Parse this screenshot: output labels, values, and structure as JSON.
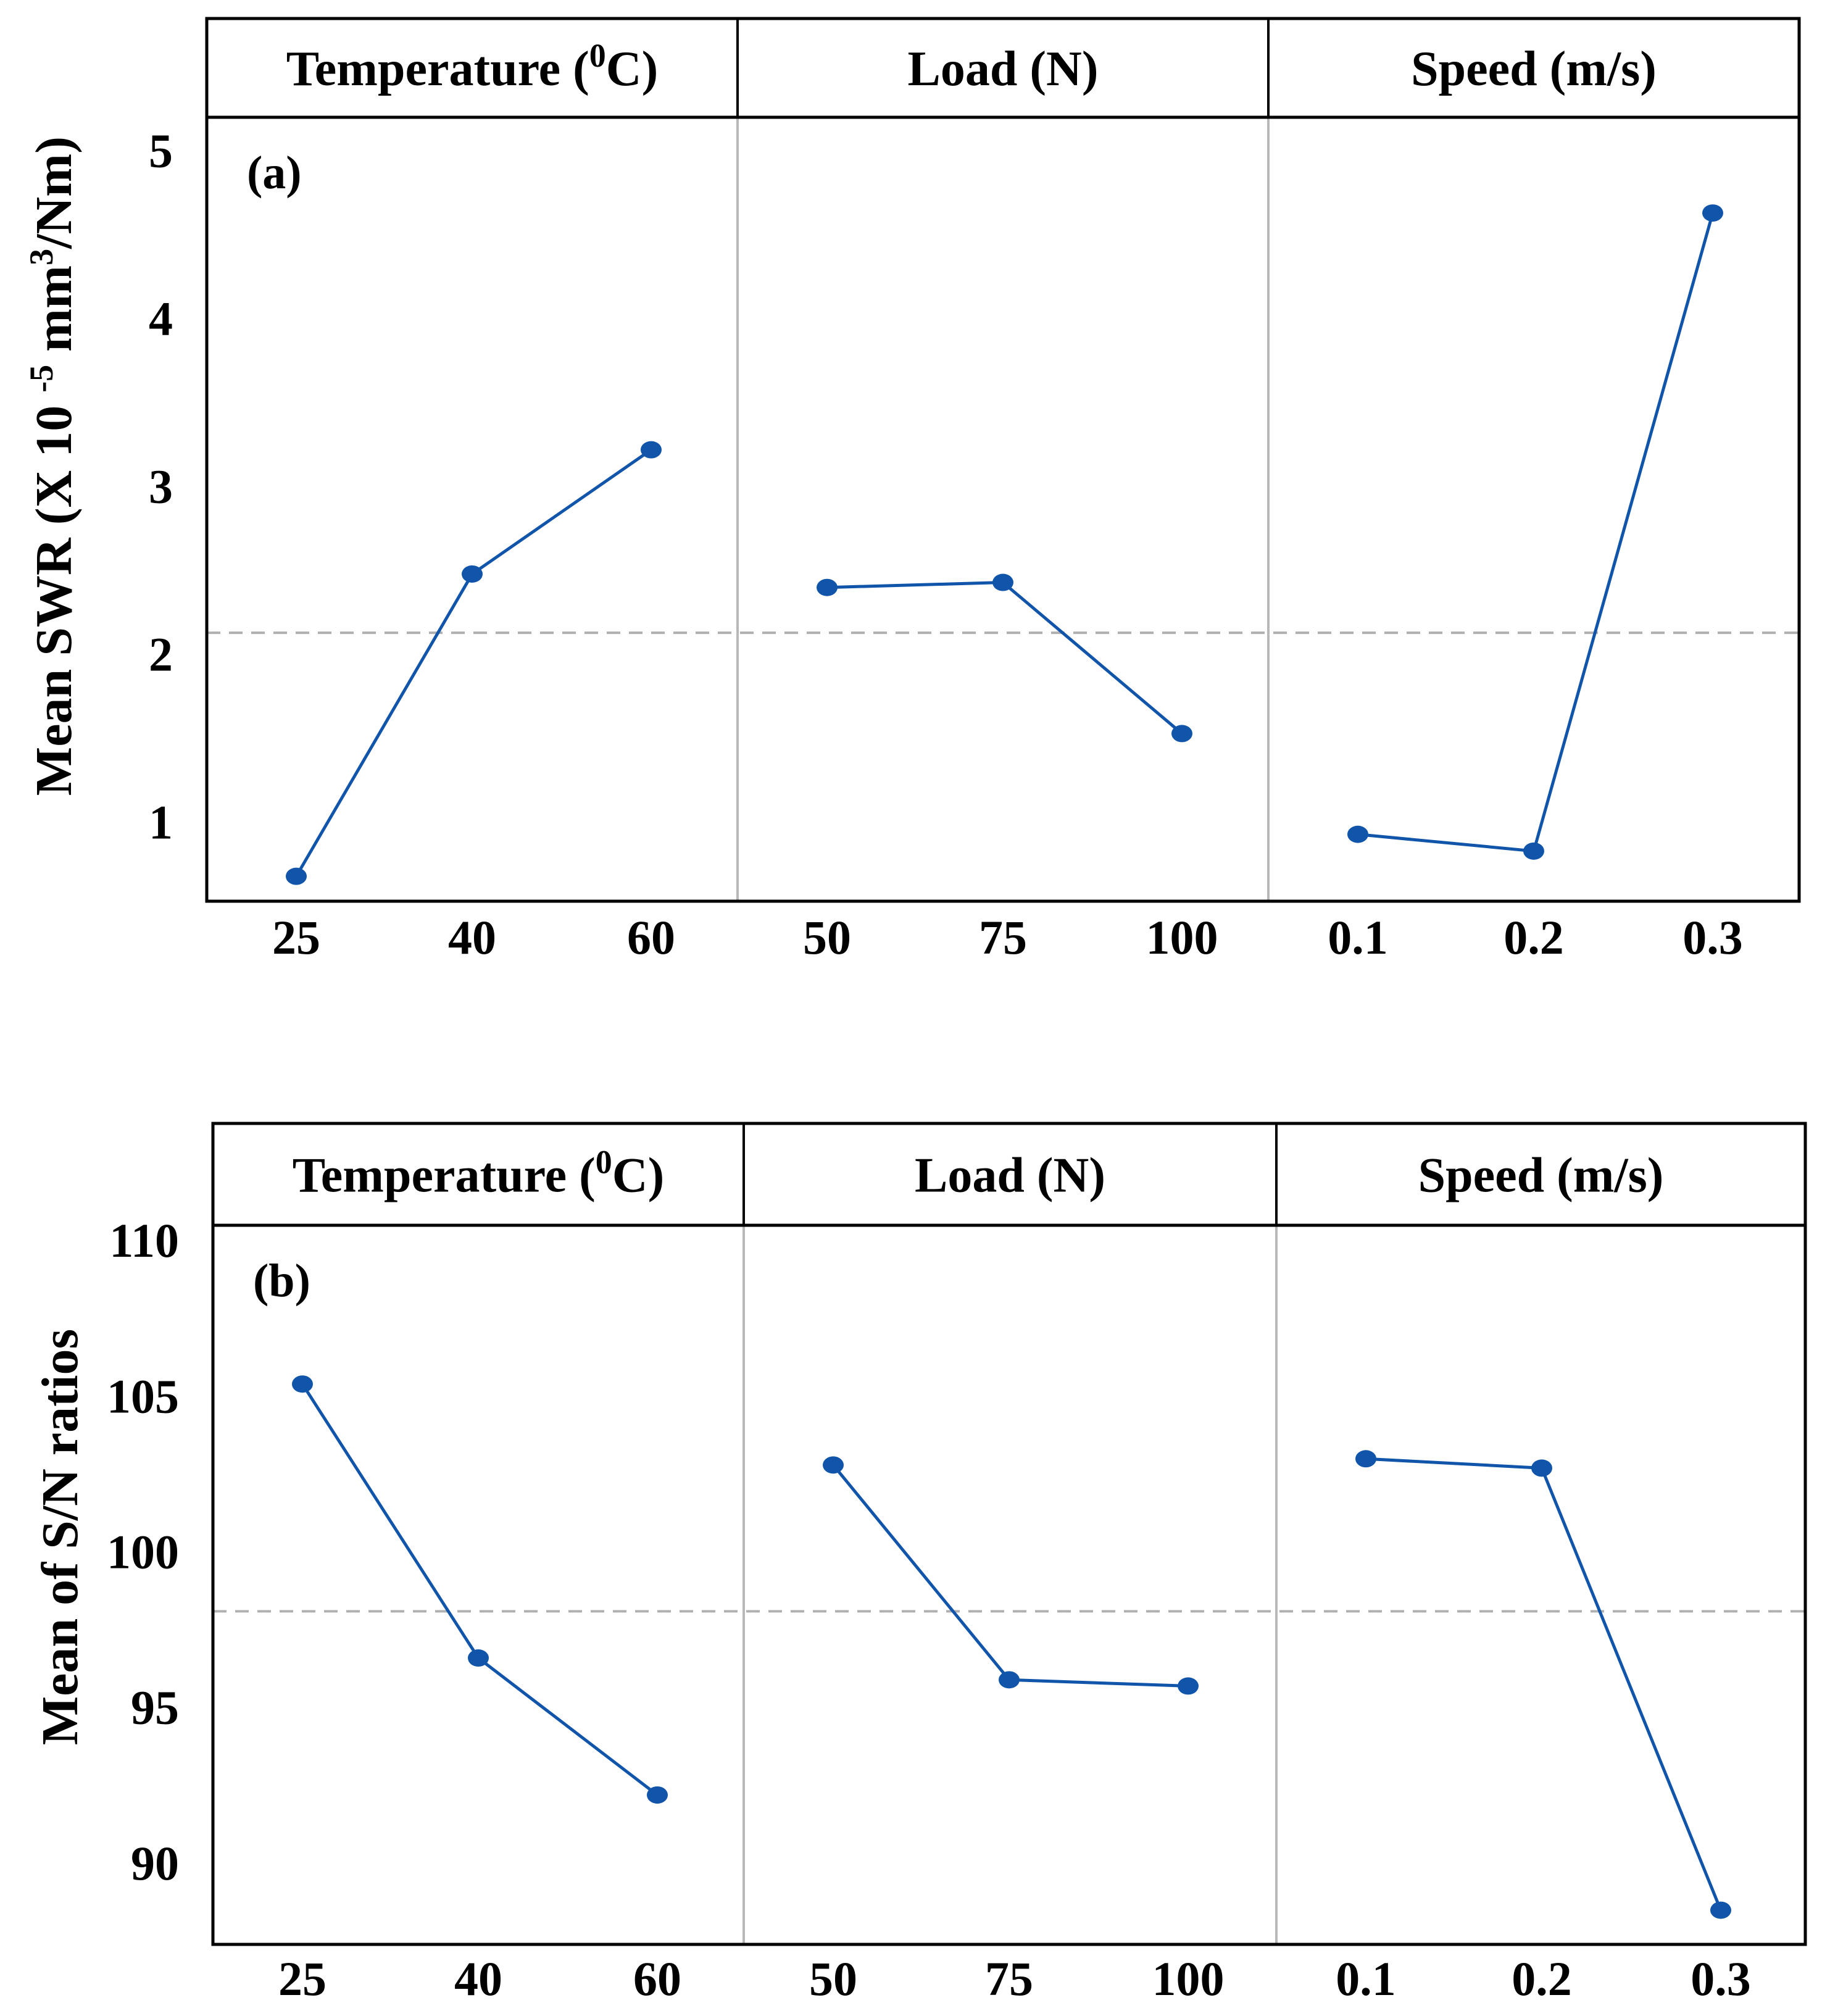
{
  "chart_data": [
    {
      "type": "line",
      "panel_label": "(a)",
      "ylabel": "Mean  SWR (X 10 -5 mm3/Nm)",
      "ylabel_parts": {
        "main": "Mean  SWR (X 10 ",
        "exp": "-5",
        "mid": " mm",
        "sup": "3",
        "tail": "/Nm)"
      },
      "ylim": [
        0.55,
        5.2
      ],
      "yticks": [
        1,
        2,
        3,
        4,
        5
      ],
      "reference_line": 2.13,
      "color": "#1155aa",
      "factors": [
        {
          "header": "Temperature (0C)",
          "header_parts": {
            "pre": "Temperature (",
            "sup": "0",
            "post": "C)"
          },
          "categories": [
            "25",
            "40",
            "60"
          ],
          "values": [
            0.68,
            2.48,
            3.22
          ]
        },
        {
          "header": "Load (N)",
          "categories": [
            "50",
            "75",
            "100"
          ],
          "values": [
            2.4,
            2.43,
            1.53
          ]
        },
        {
          "header": "Speed (m/s)",
          "categories": [
            "0.1",
            "0.2",
            "0.3"
          ],
          "values": [
            0.93,
            0.83,
            4.63
          ]
        }
      ]
    },
    {
      "type": "line",
      "panel_label": "(b)",
      "ylabel": "Mean  of S/N ratios",
      "ylim": [
        87.5,
        110.5
      ],
      "yticks": [
        90,
        95,
        100,
        105,
        110
      ],
      "reference_line": 98.1,
      "color": "#1155aa",
      "factors": [
        {
          "header": "Temperature (0C)",
          "header_parts": {
            "pre": "Temperature (",
            "sup": "0",
            "post": "C)"
          },
          "categories": [
            "25",
            "40",
            "60"
          ],
          "values": [
            105.4,
            96.6,
            92.2
          ]
        },
        {
          "header": "Load (N)",
          "categories": [
            "50",
            "75",
            "100"
          ],
          "values": [
            102.8,
            95.9,
            95.7
          ]
        },
        {
          "header": "Speed (m/s)",
          "categories": [
            "0.1",
            "0.2",
            "0.3"
          ],
          "values": [
            103.0,
            102.7,
            88.5
          ]
        }
      ]
    }
  ]
}
